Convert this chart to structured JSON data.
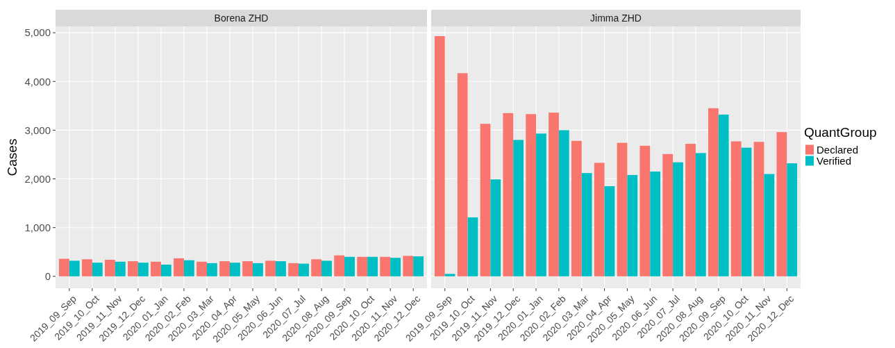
{
  "chart_data": [
    {
      "type": "bar",
      "title": "Borena ZHD",
      "ylabel": "Cases",
      "categories": [
        "2019_09_Sep",
        "2019_10_Oct",
        "2019_11_Nov",
        "2019_12_Dec",
        "2020_01_Jan",
        "2020_02_Feb",
        "2020_03_Mar",
        "2020_04_Apr",
        "2020_05_May",
        "2020_06_Jun",
        "2020_07_Jul",
        "2020_08_Aug",
        "2020_09_Sep",
        "2020_10_Oct",
        "2020_11_Nov",
        "2020_12_Dec"
      ],
      "series": [
        {
          "color": "#f8766d",
          "values": [
            360,
            350,
            340,
            310,
            300,
            370,
            300,
            310,
            310,
            320,
            270,
            350,
            430,
            400,
            400,
            420
          ]
        },
        {
          "color": "#00bfc4",
          "values": [
            320,
            280,
            300,
            280,
            240,
            330,
            270,
            280,
            270,
            310,
            260,
            320,
            400,
            400,
            380,
            410
          ]
        }
      ],
      "ylim": [
        -245,
        5130
      ],
      "yticks": [
        0,
        {
          "value": 1000,
          "label": "1,000"
        },
        {
          "value": 2000,
          "label": "2,000"
        },
        {
          "value": 3000,
          "label": "3,000"
        },
        {
          "value": 4000,
          "label": "4,000"
        },
        {
          "value": 5000,
          "label": "5,000"
        }
      ],
      "grid": true
    },
    {
      "type": "bar",
      "title": "Jimma ZHD",
      "legend_title": "QuantGroup",
      "categories": [
        "2019_09_Sep",
        "2019_10_Oct",
        "2019_11_Nov",
        "2019_12_Dec",
        "2020_01_Jan",
        "2020_02_Feb",
        "2020_03_Mar",
        "2020_04_Apr",
        "2020_05_May",
        "2020_06_Jun",
        "2020_07_Jul",
        "2020_08_Aug",
        "2020_09_Sep",
        "2020_10_Oct",
        "2020_11_Nov",
        "2020_12_Dec"
      ],
      "series": [
        {
          "name": "Declared",
          "color": "#f8766d",
          "values": [
            4930,
            4170,
            3130,
            3350,
            3330,
            3360,
            2780,
            2330,
            2740,
            2680,
            2510,
            2720,
            3450,
            2770,
            2760,
            2960
          ]
        },
        {
          "name": "Verified",
          "color": "#00bfc4",
          "values": [
            50,
            1210,
            1990,
            2800,
            2930,
            3000,
            2120,
            1850,
            2080,
            2150,
            2340,
            2530,
            3320,
            2640,
            2100,
            2320
          ]
        }
      ],
      "ylim": [
        -245,
        5130
      ],
      "yticks": [
        0,
        1000,
        2000,
        3000,
        4000,
        5000
      ],
      "grid": true,
      "tick_labels": "x",
      "legend": "right"
    }
  ]
}
